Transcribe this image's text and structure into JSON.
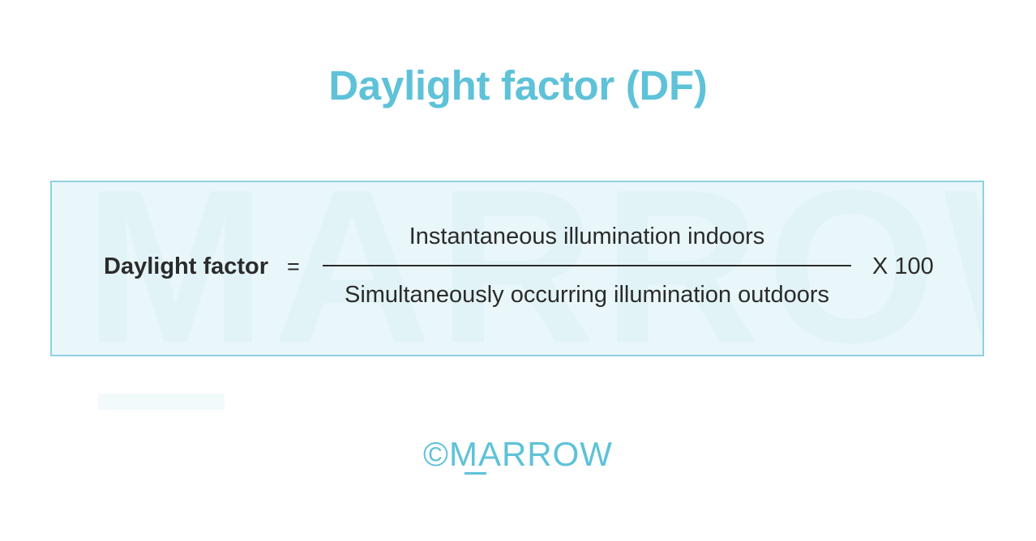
{
  "title": "Daylight factor (DF)",
  "formula": {
    "lhs": "Daylight factor",
    "equals": "=",
    "numerator": "Instantaneous illumination indoors",
    "denominator": "Simultaneously occurring illumination outdoors",
    "multiplier": "X 100"
  },
  "watermark": "MARROW",
  "logo": "©MARROW",
  "colors": {
    "accent": "#5ec2d8",
    "box_border": "#8fd1e2",
    "box_fill": "#e9f7fa",
    "text": "#2b2b2b"
  }
}
